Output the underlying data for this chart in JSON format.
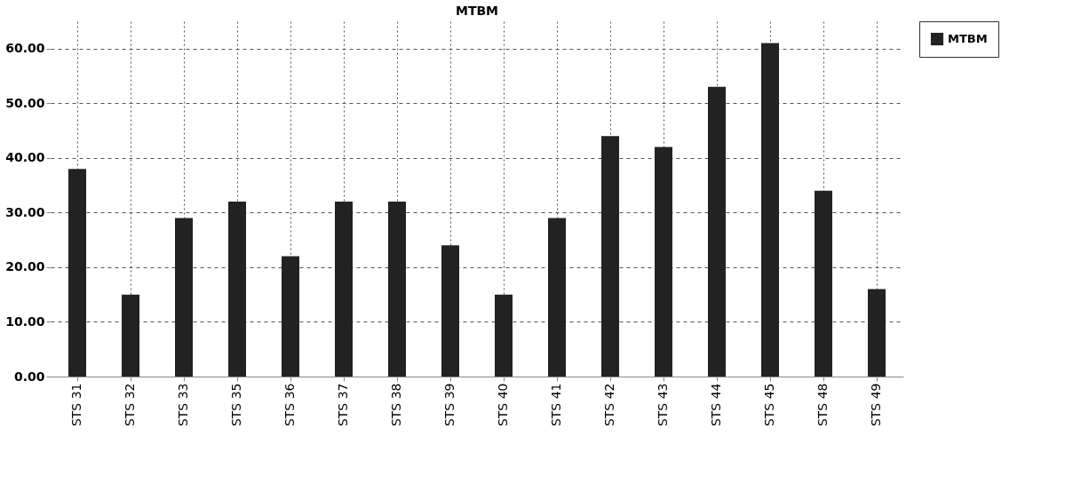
{
  "chart_data": {
    "type": "bar",
    "title": "MTBM",
    "categories": [
      "STS 31",
      "STS 32",
      "STS 33",
      "STS 35",
      "STS 36",
      "STS 37",
      "STS 38",
      "STS 39",
      "STS 40",
      "STS 41",
      "STS 42",
      "STS 43",
      "STS 44",
      "STS 45",
      "STS 48",
      "STS 49"
    ],
    "series": [
      {
        "name": "MTBM",
        "color": "#222222",
        "values": [
          38,
          15,
          29,
          32,
          22,
          32,
          32,
          24,
          15,
          29,
          44,
          42,
          53,
          61,
          34,
          16
        ]
      }
    ],
    "ylim": [
      0,
      65
    ],
    "yticks": [
      {
        "value": 0,
        "label": "0.00"
      },
      {
        "value": 10,
        "label": "10.00"
      },
      {
        "value": 20,
        "label": "20.00"
      },
      {
        "value": 30,
        "label": "30.00"
      },
      {
        "value": 40,
        "label": "40.00"
      },
      {
        "value": 50,
        "label": "50.00"
      },
      {
        "value": 60,
        "label": "60.00"
      }
    ],
    "grid": true,
    "legend": "right"
  }
}
